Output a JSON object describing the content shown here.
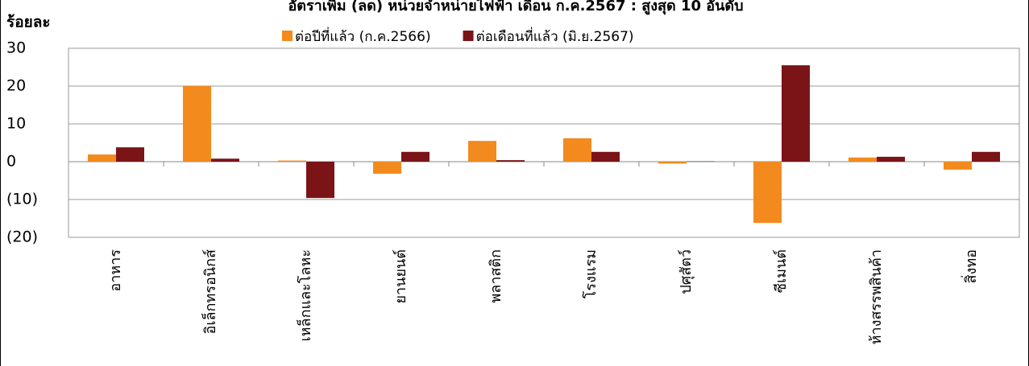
{
  "chart_data": {
    "type": "bar",
    "title": "อัตราเพิ่ม (ลด) หน่วยจำหน่ายไฟฟ้า เดือน ก.ค.2567 : สูงสุด 10 อันดับ",
    "y_label": "ร้อยละ",
    "categories": [
      "อาหาร",
      "อิเล็กทรอนิกส์",
      "เหล็กและโลหะ",
      "ยานยนต์",
      "พลาสติก",
      "โรงแรม",
      "ปศุสัตว์",
      "ซีเมนต์",
      "ห้างสรรพสินค้า",
      "สิ่งทอ"
    ],
    "series": [
      {
        "name": "ต่อปีที่แล้ว (ก.ค.2566)",
        "color": "#f28a1e",
        "values": [
          1.9,
          20,
          0.3,
          -3.2,
          5.5,
          6.2,
          -0.5,
          -16.2,
          1.1,
          -2.1
        ]
      },
      {
        "name": "ต่อเดือนที่แล้ว (มิ.ย.2567)",
        "color": "#7b1416",
        "values": [
          3.8,
          0.8,
          -9.6,
          2.6,
          0.4,
          2.6,
          0.1,
          25.5,
          1.3,
          2.6
        ]
      }
    ],
    "ylim": [
      -20,
      30
    ],
    "yticks": [
      30,
      20,
      10,
      0,
      {
        "value": -10,
        "label": "(10)"
      },
      {
        "value": -20,
        "label": "(20)"
      }
    ],
    "grid": true,
    "legend": "top"
  }
}
